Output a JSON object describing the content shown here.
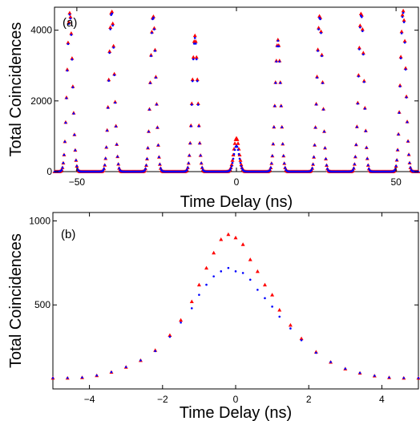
{
  "chart_data": [
    {
      "type": "scatter",
      "panel_label": "(a)",
      "xlabel": "Time Delay (ns)",
      "ylabel": "Total Coincidences",
      "xlim": [
        -57,
        57
      ],
      "ylim": [
        0,
        4650
      ],
      "xticks": [
        -50,
        0,
        50
      ],
      "yticks": [
        0,
        2000,
        4000
      ],
      "grid": false,
      "legend": "none",
      "peak_width_ns": 0.85,
      "series": [
        {
          "marker": "triangle",
          "color": "#ff0000",
          "peaks": [
            {
              "center": -52.2,
              "height": 4500
            },
            {
              "center": -39.1,
              "height": 4560
            },
            {
              "center": -26.1,
              "height": 4420
            },
            {
              "center": -13.0,
              "height": 3850
            },
            {
              "center": 0.0,
              "height": 950
            },
            {
              "center": 13.0,
              "height": 3730
            },
            {
              "center": 26.1,
              "height": 4430
            },
            {
              "center": 39.1,
              "height": 4500
            },
            {
              "center": 52.2,
              "height": 4560
            }
          ]
        },
        {
          "marker": "dot",
          "color": "#0000ff",
          "peaks": [
            {
              "center": -52.2,
              "height": 4450
            },
            {
              "center": -39.1,
              "height": 4500
            },
            {
              "center": -26.1,
              "height": 4380
            },
            {
              "center": -13.0,
              "height": 3780
            },
            {
              "center": 0.0,
              "height": 730
            },
            {
              "center": 13.0,
              "height": 3700
            },
            {
              "center": 26.1,
              "height": 4380
            },
            {
              "center": 39.1,
              "height": 4440
            },
            {
              "center": 52.2,
              "height": 4500
            }
          ]
        }
      ]
    },
    {
      "type": "scatter",
      "panel_label": "(b)",
      "xlabel": "Time Delay (ns)",
      "ylabel": "Total Coincidences",
      "xlim": [
        -5,
        5
      ],
      "ylim": [
        0,
        1050
      ],
      "xticks": [
        -4,
        -2,
        0,
        2,
        4
      ],
      "yticks": [
        500,
        1000
      ],
      "grid": false,
      "legend": "none",
      "baseline": 65,
      "series": [
        {
          "marker": "triangle",
          "color": "#ff0000",
          "x": [
            -5.0,
            -4.6,
            -4.2,
            -3.8,
            -3.4,
            -3.0,
            -2.6,
            -2.2,
            -1.8,
            -1.5,
            -1.2,
            -1.0,
            -0.8,
            -0.6,
            -0.4,
            -0.2,
            0.0,
            0.2,
            0.4,
            0.6,
            0.8,
            1.0,
            1.2,
            1.5,
            1.8,
            2.2,
            2.6,
            3.0,
            3.4,
            3.8,
            4.2,
            4.6,
            5.0
          ],
          "y": [
            65,
            65,
            68,
            80,
            100,
            130,
            170,
            230,
            320,
            410,
            520,
            620,
            720,
            810,
            890,
            920,
            900,
            860,
            770,
            700,
            620,
            560,
            470,
            380,
            300,
            220,
            160,
            120,
            95,
            78,
            68,
            65,
            65
          ]
        },
        {
          "marker": "dot",
          "color": "#0000ff",
          "x": [
            -5.0,
            -4.6,
            -4.2,
            -3.8,
            -3.4,
            -3.0,
            -2.6,
            -2.2,
            -1.8,
            -1.5,
            -1.2,
            -1.0,
            -0.8,
            -0.6,
            -0.4,
            -0.2,
            0.0,
            0.2,
            0.4,
            0.6,
            0.8,
            1.0,
            1.2,
            1.5,
            1.8,
            2.2,
            2.6,
            3.0,
            3.4,
            3.8,
            4.2,
            4.6,
            5.0
          ],
          "y": [
            65,
            65,
            68,
            80,
            100,
            130,
            170,
            225,
            310,
            395,
            480,
            560,
            620,
            670,
            700,
            720,
            700,
            690,
            650,
            590,
            540,
            490,
            430,
            360,
            290,
            215,
            160,
            120,
            95,
            78,
            68,
            65,
            65
          ]
        }
      ]
    }
  ]
}
